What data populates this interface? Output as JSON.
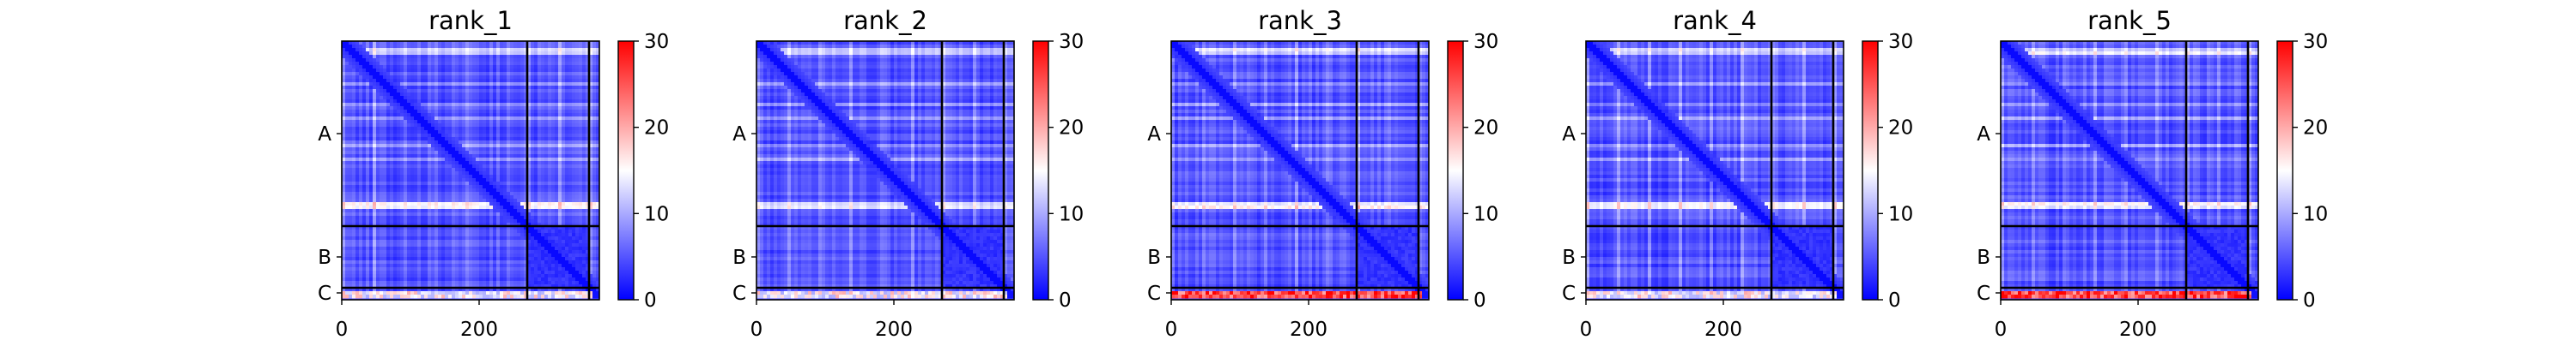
{
  "figure": {
    "colorbar": {
      "ticks": [
        "0",
        "10",
        "20",
        "30"
      ],
      "range": [
        0,
        30
      ],
      "cmap": [
        "#0000ff",
        "#ffffff",
        "#ff0000"
      ]
    },
    "chain_labels": [
      "A",
      "B",
      "C"
    ],
    "x_ticks": [
      "0",
      "200"
    ]
  },
  "chart_data": [
    {
      "type": "heatmap",
      "title": "rank_1",
      "xlabel": "",
      "ylabel": "",
      "xlim": [
        0,
        375
      ],
      "ylim": [
        375,
        0
      ],
      "x_ticks": [
        0,
        200
      ],
      "y_tick_labels": [
        "A",
        "B",
        "C"
      ],
      "chain_boundaries": [
        270,
        360
      ],
      "colorbar": {
        "min": 0,
        "max": 30,
        "ticks": [
          0,
          10,
          20,
          30
        ]
      },
      "chain_C_interface_error": "low"
    },
    {
      "type": "heatmap",
      "title": "rank_2",
      "xlabel": "",
      "ylabel": "",
      "xlim": [
        0,
        375
      ],
      "ylim": [
        375,
        0
      ],
      "x_ticks": [
        0,
        200
      ],
      "y_tick_labels": [
        "A",
        "B",
        "C"
      ],
      "chain_boundaries": [
        270,
        360
      ],
      "colorbar": {
        "min": 0,
        "max": 30,
        "ticks": [
          0,
          10,
          20,
          30
        ]
      },
      "chain_C_interface_error": "low"
    },
    {
      "type": "heatmap",
      "title": "rank_3",
      "xlabel": "",
      "ylabel": "",
      "xlim": [
        0,
        375
      ],
      "ylim": [
        375,
        0
      ],
      "x_ticks": [
        0,
        200
      ],
      "y_tick_labels": [
        "A",
        "B",
        "C"
      ],
      "chain_boundaries": [
        270,
        360
      ],
      "colorbar": {
        "min": 0,
        "max": 30,
        "ticks": [
          0,
          10,
          20,
          30
        ]
      },
      "chain_C_interface_error": "high"
    },
    {
      "type": "heatmap",
      "title": "rank_4",
      "xlabel": "",
      "ylabel": "",
      "xlim": [
        0,
        375
      ],
      "ylim": [
        375,
        0
      ],
      "x_ticks": [
        0,
        200
      ],
      "y_tick_labels": [
        "A",
        "B",
        "C"
      ],
      "chain_boundaries": [
        270,
        360
      ],
      "colorbar": {
        "min": 0,
        "max": 30,
        "ticks": [
          0,
          10,
          20,
          30
        ]
      },
      "chain_C_interface_error": "low"
    },
    {
      "type": "heatmap",
      "title": "rank_5",
      "xlabel": "",
      "ylabel": "",
      "xlim": [
        0,
        375
      ],
      "ylim": [
        375,
        0
      ],
      "x_ticks": [
        0,
        200
      ],
      "y_tick_labels": [
        "A",
        "B",
        "C"
      ],
      "chain_boundaries": [
        270,
        360
      ],
      "colorbar": {
        "min": 0,
        "max": 30,
        "ticks": [
          0,
          10,
          20,
          30
        ]
      },
      "chain_C_interface_error": "high"
    }
  ]
}
